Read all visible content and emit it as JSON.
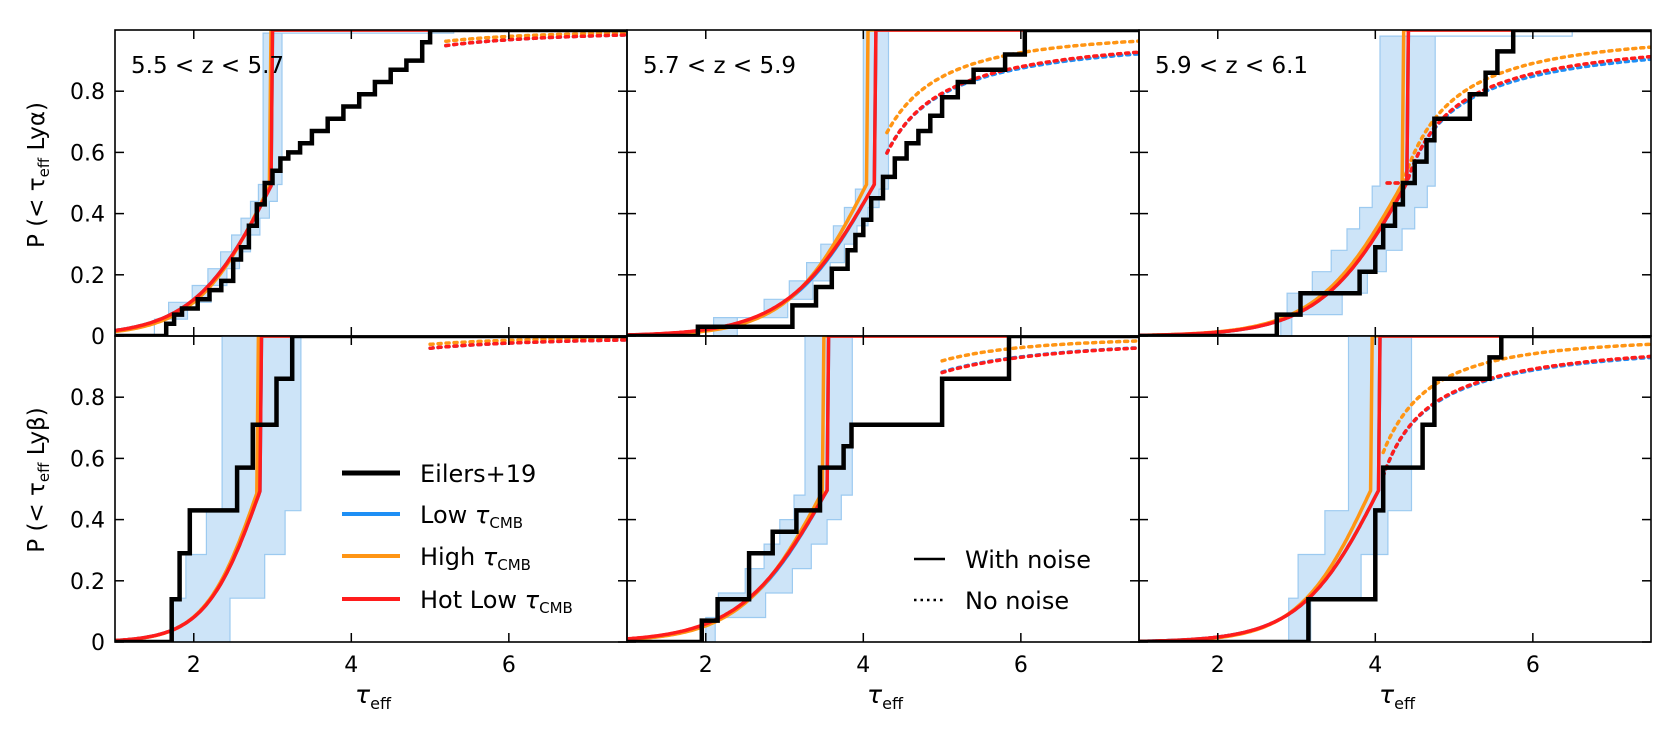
{
  "figure": {
    "ylabels": [
      "P (< τ_eff Lyα)",
      "P (< τ_eff Lyβ)"
    ],
    "xlabel": "τ_eff",
    "legend_models": [
      "Eilers+19",
      "Low τ_CMB",
      "High τ_CMB",
      "Hot Low τ_CMB"
    ],
    "legend_noise": [
      "With noise",
      "No noise"
    ]
  },
  "colors": {
    "obs": "#000000",
    "low": "#1e8ff5",
    "high": "#ff9514",
    "hot": "#ff1c1c",
    "band_fill": "#cde4f8",
    "band_edge": "#9ccaf0"
  },
  "chart_data": [
    {
      "type": "line",
      "row": 0,
      "col": 0,
      "panel_label": "5.5 < z < 5.7",
      "xlim": [
        1,
        7.5
      ],
      "ylim": [
        0,
        1
      ],
      "xticks": [
        2,
        4,
        6
      ],
      "xtick_labels": [
        "2",
        "4",
        "6"
      ],
      "yticks": [
        0,
        0.2,
        0.4,
        0.6,
        0.8
      ],
      "ytick_labels": [
        "0",
        "0.2",
        "0.4",
        "0.6",
        "0.8"
      ],
      "obs_x": [
        1.65,
        1.65,
        1.75,
        1.75,
        1.85,
        1.85,
        2.05,
        2.05,
        2.2,
        2.2,
        2.35,
        2.35,
        2.5,
        2.5,
        2.6,
        2.6,
        2.7,
        2.7,
        2.8,
        2.8,
        2.9,
        2.9,
        3.0,
        3.0,
        3.1,
        3.1,
        3.2,
        3.2,
        3.35,
        3.35,
        3.5,
        3.5,
        3.7,
        3.7,
        3.9,
        3.9,
        4.1,
        4.1,
        4.3,
        4.3,
        4.5,
        4.5,
        4.7,
        4.7,
        4.9,
        4.9,
        5.0,
        5.0,
        7.5
      ],
      "obs_y": [
        0.0,
        0.04,
        0.04,
        0.07,
        0.07,
        0.09,
        0.09,
        0.12,
        0.12,
        0.15,
        0.15,
        0.18,
        0.18,
        0.25,
        0.25,
        0.29,
        0.29,
        0.36,
        0.36,
        0.43,
        0.43,
        0.5,
        0.5,
        0.54,
        0.54,
        0.58,
        0.58,
        0.6,
        0.6,
        0.63,
        0.63,
        0.67,
        0.67,
        0.71,
        0.71,
        0.75,
        0.75,
        0.79,
        0.79,
        0.83,
        0.83,
        0.87,
        0.87,
        0.9,
        0.9,
        0.96,
        0.96,
        1.0,
        1.0
      ],
      "series": [
        {
          "name": "Low τ_CMB",
          "style": "solid",
          "mu": 3.0,
          "s": 0.5,
          "gamma": 2.5,
          "scale": 1.0,
          "x0": 1.3
        },
        {
          "name": "High τ_CMB",
          "style": "solid",
          "mu": 2.98,
          "s": 0.47,
          "gamma": 3.2,
          "scale": 1.0,
          "x0": 1.3
        },
        {
          "name": "Hot Low τ_CMB",
          "style": "solid",
          "mu": 3.0,
          "s": 0.5,
          "gamma": 2.5,
          "scale": 1.0,
          "x0": 1.3
        },
        {
          "name": "Low τ_CMB",
          "style": "dotted",
          "mu": 3.0,
          "s": 0.5,
          "gamma": 2.5,
          "scale": 1.0,
          "x0": 5.2
        },
        {
          "name": "High τ_CMB",
          "style": "dotted",
          "mu": 2.98,
          "s": 0.47,
          "gamma": 3.2,
          "scale": 1.0,
          "x0": 5.2
        },
        {
          "name": "Hot Low τ_CMB",
          "style": "dotted",
          "mu": 3.0,
          "s": 0.5,
          "gamma": 2.5,
          "scale": 1.0,
          "x0": 5.2
        }
      ],
      "band": {
        "mu": 3.0,
        "s": 0.5,
        "gamma": 2.5,
        "scale": 1.0,
        "dxlo": 0.12,
        "dxhi": -0.12,
        "step": 0.055,
        "xmin": 1.5,
        "xmax": 5.3
      }
    },
    {
      "type": "line",
      "row": 0,
      "col": 1,
      "panel_label": "5.7 < z < 5.9",
      "xlim": [
        1,
        7.5
      ],
      "ylim": [
        0,
        1
      ],
      "xticks": [
        2,
        4,
        6
      ],
      "xtick_labels": [
        "2",
        "4",
        "6"
      ],
      "yticks": [
        0,
        0.2,
        0.4,
        0.6,
        0.8
      ],
      "ytick_labels": [
        "0",
        "0.2",
        "0.4",
        "0.6",
        "0.8"
      ],
      "obs_x": [
        1.9,
        1.9,
        3.1,
        3.1,
        3.4,
        3.4,
        3.6,
        3.6,
        3.8,
        3.8,
        3.9,
        3.9,
        4.0,
        4.0,
        4.1,
        4.1,
        4.25,
        4.25,
        4.4,
        4.4,
        4.55,
        4.55,
        4.7,
        4.7,
        4.85,
        4.85,
        5.0,
        5.0,
        5.2,
        5.2,
        5.4,
        5.4,
        5.8,
        5.8,
        6.05,
        6.05,
        7.5
      ],
      "obs_y": [
        0.0,
        0.03,
        0.03,
        0.1,
        0.1,
        0.16,
        0.16,
        0.22,
        0.22,
        0.28,
        0.28,
        0.33,
        0.33,
        0.38,
        0.38,
        0.45,
        0.45,
        0.52,
        0.52,
        0.58,
        0.58,
        0.63,
        0.63,
        0.67,
        0.67,
        0.72,
        0.72,
        0.78,
        0.78,
        0.83,
        0.83,
        0.87,
        0.87,
        0.92,
        0.92,
        1.0,
        1.0
      ],
      "series": [
        {
          "name": "Low τ_CMB",
          "style": "solid",
          "mu": 4.15,
          "s": 0.55,
          "gamma": 5.5,
          "scale": 1.0,
          "x0": 2.0
        },
        {
          "name": "High τ_CMB",
          "style": "solid",
          "mu": 4.05,
          "s": 0.5,
          "gamma": 9.0,
          "scale": 1.0,
          "x0": 2.0
        },
        {
          "name": "Hot Low τ_CMB",
          "style": "solid",
          "mu": 4.15,
          "s": 0.56,
          "gamma": 5.5,
          "scale": 1.0,
          "x0": 2.0
        },
        {
          "name": "Low τ_CMB",
          "style": "dotted",
          "mu": 4.15,
          "s": 0.55,
          "gamma": 1.1,
          "scale": 1.0,
          "x0": 4.3
        },
        {
          "name": "High τ_CMB",
          "style": "dotted",
          "mu": 4.05,
          "s": 0.5,
          "gamma": 1.9,
          "scale": 1.0,
          "x0": 4.3
        },
        {
          "name": "Hot Low τ_CMB",
          "style": "dotted",
          "mu": 4.15,
          "s": 0.56,
          "gamma": 1.2,
          "scale": 1.0,
          "x0": 4.3
        }
      ],
      "band": {
        "mu": 4.15,
        "s": 0.55,
        "gamma": 5.5,
        "scale": 1.0,
        "dxlo": 0.15,
        "dxhi": -0.15,
        "step": 0.06,
        "xmin": 2.1,
        "xmax": 6.3
      }
    },
    {
      "type": "line",
      "row": 0,
      "col": 2,
      "panel_label": "5.9 < z < 6.1",
      "xlim": [
        1,
        7.5
      ],
      "ylim": [
        0,
        1
      ],
      "xticks": [
        2,
        4,
        6
      ],
      "xtick_labels": [
        "2",
        "4",
        "6"
      ],
      "yticks": [
        0,
        0.2,
        0.4,
        0.6,
        0.8
      ],
      "ytick_labels": [
        "0",
        "0.2",
        "0.4",
        "0.6",
        "0.8"
      ],
      "obs_x": [
        2.75,
        2.75,
        3.05,
        3.05,
        3.8,
        3.8,
        4.0,
        4.0,
        4.1,
        4.1,
        4.25,
        4.25,
        4.35,
        4.35,
        4.5,
        4.5,
        4.65,
        4.65,
        4.75,
        4.75,
        4.85,
        4.85,
        5.2,
        5.2,
        5.4,
        5.4,
        5.55,
        5.55,
        5.65,
        5.65,
        5.75,
        5.75,
        7.5
      ],
      "obs_y": [
        0.0,
        0.07,
        0.07,
        0.14,
        0.14,
        0.21,
        0.21,
        0.29,
        0.29,
        0.36,
        0.36,
        0.43,
        0.43,
        0.5,
        0.5,
        0.57,
        0.57,
        0.64,
        0.64,
        0.71,
        0.71,
        0.71,
        0.71,
        0.79,
        0.79,
        0.86,
        0.86,
        0.93,
        0.93,
        0.93,
        0.93,
        1.0,
        1.0
      ],
      "series": [
        {
          "name": "Low τ_CMB",
          "style": "solid",
          "mu": 4.4,
          "s": 0.55,
          "gamma": 5.0,
          "scale": 1.0,
          "x0": 2.5
        },
        {
          "name": "High τ_CMB",
          "style": "solid",
          "mu": 4.35,
          "s": 0.55,
          "gamma": 9.0,
          "scale": 1.0,
          "x0": 2.5
        },
        {
          "name": "Hot Low τ_CMB",
          "style": "solid",
          "mu": 4.4,
          "s": 0.55,
          "gamma": 5.0,
          "scale": 1.0,
          "x0": 2.5
        },
        {
          "name": "Low τ_CMB",
          "style": "dotted",
          "mu": 4.4,
          "s": 0.55,
          "gamma": 0.95,
          "scale": 1.0,
          "x0": 4.15
        },
        {
          "name": "High τ_CMB",
          "style": "dotted",
          "mu": 4.35,
          "s": 0.55,
          "gamma": 1.6,
          "scale": 1.0,
          "x0": 4.15
        },
        {
          "name": "Hot Low τ_CMB",
          "style": "dotted",
          "mu": 4.4,
          "s": 0.55,
          "gamma": 1.05,
          "scale": 1.0,
          "x0": 4.15
        }
      ],
      "band": {
        "mu": 4.4,
        "s": 0.55,
        "gamma": 5.0,
        "scale": 1.0,
        "dxlo": 0.35,
        "dxhi": -0.35,
        "step": 0.07,
        "xmin": 2.8,
        "xmax": 6.5
      }
    },
    {
      "type": "line",
      "row": 1,
      "col": 0,
      "panel_label": "",
      "xlim": [
        1,
        7.5
      ],
      "ylim": [
        0,
        1
      ],
      "xticks": [
        2,
        4,
        6
      ],
      "xtick_labels": [
        "2",
        "4",
        "6"
      ],
      "yticks": [
        0,
        0.2,
        0.4,
        0.6,
        0.8
      ],
      "ytick_labels": [
        "0",
        "0.2",
        "0.4",
        "0.6",
        "0.8"
      ],
      "obs_x": [
        1.72,
        1.72,
        1.82,
        1.82,
        1.95,
        1.95,
        2.55,
        2.55,
        2.75,
        2.75,
        3.05,
        3.05,
        3.25,
        3.25,
        7.5
      ],
      "obs_y": [
        0.0,
        0.14,
        0.14,
        0.29,
        0.29,
        0.43,
        0.43,
        0.57,
        0.57,
        0.71,
        0.71,
        0.86,
        0.86,
        1.0,
        1.0
      ],
      "series": [
        {
          "name": "Low τ_CMB",
          "style": "solid",
          "mu": 2.85,
          "s": 0.35,
          "gamma": 2.0,
          "scale": 1.0,
          "x0": 1.3
        },
        {
          "name": "High τ_CMB",
          "style": "solid",
          "mu": 2.82,
          "s": 0.34,
          "gamma": 2.6,
          "scale": 1.0,
          "x0": 1.3
        },
        {
          "name": "Hot Low τ_CMB",
          "style": "solid",
          "mu": 2.85,
          "s": 0.35,
          "gamma": 2.0,
          "scale": 1.0,
          "x0": 1.3
        },
        {
          "name": "Low τ_CMB",
          "style": "dotted",
          "mu": 2.85,
          "s": 0.35,
          "gamma": 2.0,
          "scale": 1.0,
          "x0": 5.0
        },
        {
          "name": "High τ_CMB",
          "style": "dotted",
          "mu": 2.82,
          "s": 0.34,
          "gamma": 2.6,
          "scale": 1.0,
          "x0": 5.0
        },
        {
          "name": "Hot Low τ_CMB",
          "style": "dotted",
          "mu": 2.85,
          "s": 0.35,
          "gamma": 2.0,
          "scale": 1.0,
          "x0": 5.0
        }
      ],
      "band": {
        "mu": 2.85,
        "s": 0.35,
        "gamma": 2.0,
        "scale": 1.0,
        "dxlo": 0.5,
        "dxhi": -0.5,
        "step": 0.143,
        "xmin": 1.7,
        "xmax": 5.0
      }
    },
    {
      "type": "line",
      "row": 1,
      "col": 1,
      "panel_label": "",
      "xlim": [
        1,
        7.5
      ],
      "ylim": [
        0,
        1
      ],
      "xticks": [
        2,
        4,
        6
      ],
      "xtick_labels": [
        "2",
        "4",
        "6"
      ],
      "yticks": [
        0,
        0.2,
        0.4,
        0.6,
        0.8
      ],
      "ytick_labels": [
        "0",
        "0.2",
        "0.4",
        "0.6",
        "0.8"
      ],
      "obs_x": [
        1.95,
        1.95,
        2.15,
        2.15,
        2.55,
        2.55,
        2.85,
        2.85,
        3.15,
        3.15,
        3.45,
        3.45,
        3.75,
        3.75,
        3.85,
        3.85,
        4.3,
        4.3,
        5.0,
        5.0,
        5.85,
        5.85,
        7.5
      ],
      "obs_y": [
        0.0,
        0.07,
        0.07,
        0.14,
        0.14,
        0.29,
        0.29,
        0.36,
        0.36,
        0.43,
        0.43,
        0.57,
        0.57,
        0.64,
        0.64,
        0.71,
        0.71,
        0.71,
        0.71,
        0.86,
        0.86,
        1.0,
        1.0
      ],
      "series": [
        {
          "name": "Low τ_CMB",
          "style": "solid",
          "mu": 3.55,
          "s": 0.55,
          "gamma": 1.75,
          "scale": 1.0,
          "x0": 2.0
        },
        {
          "name": "High τ_CMB",
          "style": "solid",
          "mu": 3.5,
          "s": 0.52,
          "gamma": 3.0,
          "scale": 1.0,
          "x0": 2.0
        },
        {
          "name": "Hot Low τ_CMB",
          "style": "solid",
          "mu": 3.55,
          "s": 0.56,
          "gamma": 1.75,
          "scale": 1.0,
          "x0": 2.0
        },
        {
          "name": "Low τ_CMB",
          "style": "dotted",
          "mu": 3.55,
          "s": 0.55,
          "gamma": 1.75,
          "scale": 1.0,
          "x0": 5.0
        },
        {
          "name": "High τ_CMB",
          "style": "dotted",
          "mu": 3.5,
          "s": 0.52,
          "gamma": 3.0,
          "scale": 1.0,
          "x0": 5.0
        },
        {
          "name": "Hot Low τ_CMB",
          "style": "dotted",
          "mu": 3.55,
          "s": 0.56,
          "gamma": 1.75,
          "scale": 1.0,
          "x0": 5.0
        }
      ],
      "band": {
        "mu": 3.55,
        "s": 0.55,
        "gamma": 1.75,
        "scale": 1.0,
        "dxlo": 0.3,
        "dxhi": -0.3,
        "step": 0.08,
        "xmin": 2.0,
        "xmax": 6.1
      }
    },
    {
      "type": "line",
      "row": 1,
      "col": 2,
      "panel_label": "",
      "xlim": [
        1,
        7.5
      ],
      "ylim": [
        0,
        1
      ],
      "xticks": [
        2,
        4,
        6
      ],
      "xtick_labels": [
        "2",
        "4",
        "6"
      ],
      "yticks": [
        0,
        0.2,
        0.4,
        0.6,
        0.8
      ],
      "ytick_labels": [
        "0",
        "0.2",
        "0.4",
        "0.6",
        "0.8"
      ],
      "obs_x": [
        3.15,
        3.15,
        3.45,
        3.45,
        4.0,
        4.0,
        4.1,
        4.1,
        4.25,
        4.25,
        4.6,
        4.6,
        4.75,
        4.75,
        4.95,
        4.95,
        5.3,
        5.3,
        5.45,
        5.45,
        5.6,
        5.6,
        7.5
      ],
      "obs_y": [
        0.0,
        0.14,
        0.14,
        0.14,
        0.14,
        0.43,
        0.43,
        0.57,
        0.57,
        0.57,
        0.57,
        0.71,
        0.71,
        0.86,
        0.86,
        0.86,
        0.86,
        0.86,
        0.86,
        0.93,
        0.93,
        1.0,
        1.0
      ],
      "series": [
        {
          "name": "Low τ_CMB",
          "style": "solid",
          "mu": 4.05,
          "s": 0.5,
          "gamma": 2.5,
          "scale": 1.0,
          "x0": 2.5
        },
        {
          "name": "High τ_CMB",
          "style": "solid",
          "mu": 3.95,
          "s": 0.46,
          "gamma": 4.0,
          "scale": 1.0,
          "x0": 2.5
        },
        {
          "name": "Hot Low τ_CMB",
          "style": "solid",
          "mu": 4.05,
          "s": 0.5,
          "gamma": 2.5,
          "scale": 1.0,
          "x0": 2.5
        },
        {
          "name": "Low τ_CMB",
          "style": "dotted",
          "mu": 4.05,
          "s": 0.5,
          "gamma": 1.1,
          "scale": 1.0,
          "x0": 4.1
        },
        {
          "name": "High τ_CMB",
          "style": "dotted",
          "mu": 3.95,
          "s": 0.46,
          "gamma": 2.1,
          "scale": 1.0,
          "x0": 4.1
        },
        {
          "name": "Hot Low τ_CMB",
          "style": "dotted",
          "mu": 4.05,
          "s": 0.5,
          "gamma": 1.15,
          "scale": 1.0,
          "x0": 4.1
        }
      ],
      "band": {
        "mu": 4.05,
        "s": 0.5,
        "gamma": 2.5,
        "scale": 1.0,
        "dxlo": 0.4,
        "dxhi": -0.4,
        "step": 0.143,
        "xmin": 2.9,
        "xmax": 5.8
      }
    }
  ]
}
